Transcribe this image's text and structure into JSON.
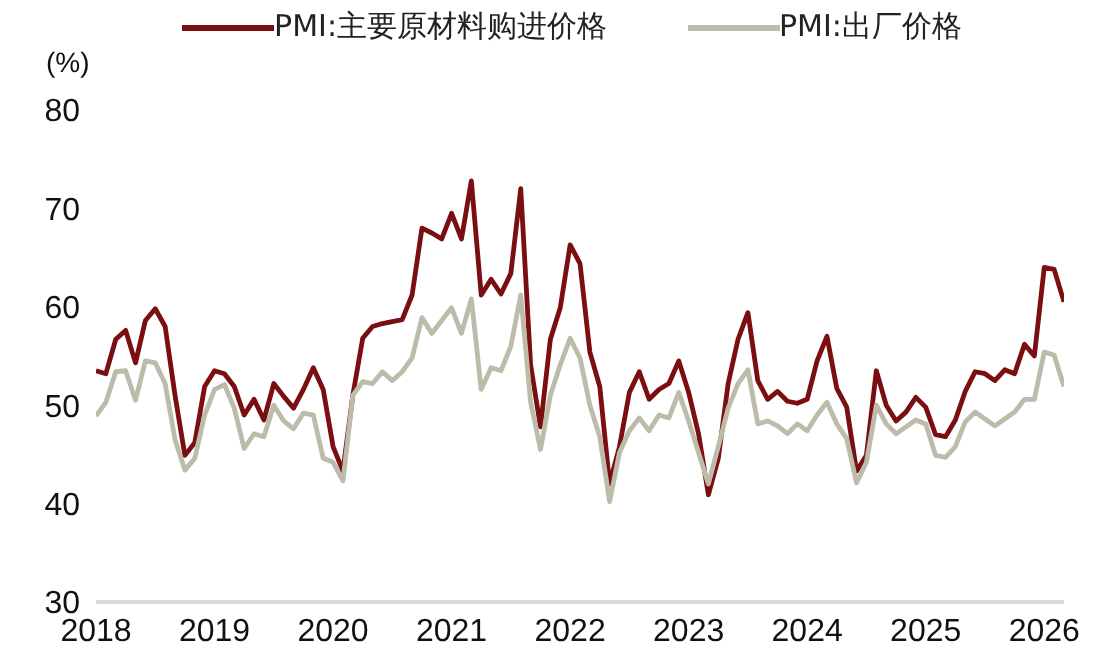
{
  "chart_data": {
    "type": "line",
    "ylabel": "(%)",
    "x": [
      "2018-01",
      "2018-02",
      "2018-03",
      "2018-04",
      "2018-05",
      "2018-06",
      "2018-07",
      "2018-08",
      "2018-09",
      "2018-10",
      "2018-11",
      "2018-12",
      "2019-01",
      "2019-02",
      "2019-03",
      "2019-04",
      "2019-05",
      "2019-06",
      "2019-07",
      "2019-08",
      "2019-09",
      "2019-10",
      "2019-11",
      "2019-12",
      "2020-01",
      "2020-02",
      "2020-03",
      "2020-04",
      "2020-05",
      "2020-06",
      "2020-07",
      "2020-08",
      "2020-09",
      "2020-10",
      "2020-11",
      "2020-12",
      "2021-01",
      "2021-02",
      "2021-03",
      "2021-04",
      "2021-05",
      "2021-06",
      "2021-07",
      "2021-08",
      "2021-09",
      "2021-10",
      "2021-11",
      "2021-12",
      "2022-01",
      "2022-02",
      "2022-03",
      "2022-04",
      "2022-05",
      "2022-06",
      "2022-07",
      "2022-08",
      "2022-09",
      "2022-10",
      "2022-11",
      "2022-12",
      "2023-01",
      "2023-02",
      "2023-03",
      "2023-04",
      "2023-05",
      "2023-06",
      "2023-07",
      "2023-08",
      "2023-09",
      "2023-10",
      "2023-11",
      "2023-12",
      "2024-01",
      "2024-02",
      "2024-03",
      "2024-04",
      "2024-05",
      "2024-06",
      "2024-07",
      "2024-08",
      "2024-09",
      "2024-10",
      "2024-11",
      "2024-12",
      "2025-01",
      "2025-02",
      "2025-03",
      "2025-04",
      "2025-05",
      "2025-06",
      "2025-07",
      "2025-08",
      "2025-09",
      "2025-10",
      "2025-11",
      "2025-12",
      "2026-01",
      "2026-02",
      "2026-03"
    ],
    "xlim": [
      "2018-01",
      "2026-03"
    ],
    "xticks": [
      "2018",
      "2019",
      "2020",
      "2021",
      "2022",
      "2023",
      "2024",
      "2025",
      "2026"
    ],
    "ylim": [
      30,
      80
    ],
    "yticks": [
      30,
      40,
      50,
      60,
      70,
      80
    ],
    "grid": false,
    "legend": "top",
    "marker": "none",
    "line_style": "solid",
    "series": [
      {
        "name": "PMI:主要原材料购进价格",
        "color": "#7a0e10",
        "values": [
          53.5,
          53.2,
          56.7,
          57.6,
          54.3,
          58.6,
          59.8,
          58,
          51,
          44.9,
          46.2,
          51.9,
          53.5,
          53.2,
          51.9,
          49,
          50.6,
          48.5,
          52.2,
          50.9,
          49.7,
          51.6,
          53.8,
          51.6,
          45.8,
          43.3,
          51,
          56.8,
          58,
          58.3,
          58.5,
          58.7,
          61.2,
          68,
          67.5,
          66.9,
          69.5,
          66.9,
          72.8,
          61.2,
          62.8,
          61.3,
          63.4,
          72,
          54.1,
          47.8,
          56.7,
          59.9,
          66.3,
          64.4,
          55.4,
          51.9,
          42,
          45.8,
          51.3,
          53.4,
          50.6,
          51.6,
          52.2,
          54.5,
          51.3,
          47.1,
          40.9,
          44.6,
          52.2,
          56.7,
          59.4,
          52.5,
          50.6,
          51.4,
          50.4,
          50.2,
          50.6,
          54.5,
          57,
          51.7,
          49.8,
          43.3,
          44.9,
          53.5,
          50,
          48.4,
          49.3,
          50.8,
          49.8,
          47,
          46.8,
          48.5,
          51.4,
          53.4,
          53.2,
          52.5,
          53.6,
          53.2,
          56.2,
          55,
          64,
          63.8,
          60.5
        ]
      },
      {
        "name": "PMI:出厂价格",
        "color": "#bdbcaa",
        "values": [
          48.9,
          50.3,
          53.4,
          53.5,
          50.5,
          54.5,
          54.3,
          52.2,
          46.5,
          43.4,
          44.6,
          49,
          51.6,
          52.1,
          49.7,
          45.6,
          47.1,
          46.8,
          50,
          48.4,
          47.6,
          49.2,
          49,
          44.6,
          44.2,
          42.3,
          51,
          52.4,
          52.2,
          53.4,
          52.5,
          53.4,
          54.8,
          58.9,
          57.3,
          58.6,
          59.9,
          57.3,
          60.8,
          51.6,
          53.8,
          53.5,
          56,
          61.2,
          50.3,
          45.5,
          51,
          54.1,
          56.8,
          54.8,
          50,
          46.8,
          40.2,
          45.2,
          47.4,
          48.7,
          47.4,
          49,
          48.7,
          51.3,
          48.4,
          45.2,
          42,
          45.8,
          49.7,
          52.2,
          53.6,
          48.1,
          48.4,
          47.9,
          47.1,
          48.1,
          47.4,
          49,
          50.3,
          48.1,
          46.6,
          42.1,
          44.2,
          50,
          48.1,
          47.1,
          47.8,
          48.5,
          48.1,
          44.9,
          44.7,
          45.8,
          48.3,
          49.3,
          48.6,
          47.9,
          48.6,
          49.3,
          50.6,
          50.6,
          55.4,
          55.1,
          51.9
        ]
      }
    ]
  }
}
